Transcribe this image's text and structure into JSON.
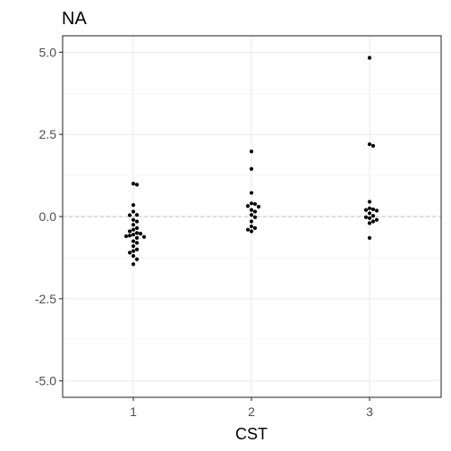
{
  "chart_data": {
    "type": "scatter",
    "title": "NA",
    "xlabel": "CST",
    "ylabel": "",
    "categories": [
      "1",
      "2",
      "3"
    ],
    "ylim": [
      -5.5,
      5.5
    ],
    "yticks": [
      5.0,
      2.5,
      0.0,
      -2.5,
      -5.0
    ],
    "ytick_labels": [
      "5.0",
      "2.5",
      "0.0",
      "-2.5",
      "-5.0"
    ],
    "reference_line": 0,
    "grid": true,
    "points": [
      {
        "category": "1",
        "values": [
          1.0,
          0.97,
          0.35,
          0.15,
          0.05,
          0.04,
          -0.1,
          -0.15,
          -0.25,
          -0.35,
          -0.4,
          -0.45,
          -0.5,
          -0.52,
          -0.55,
          -0.58,
          -0.6,
          -0.62,
          -0.65,
          -0.75,
          -0.8,
          -0.9,
          -1.0,
          -1.05,
          -1.1,
          -1.2,
          -1.3,
          -1.45
        ]
      },
      {
        "category": "2",
        "values": [
          1.98,
          1.45,
          0.72,
          0.4,
          0.38,
          0.32,
          0.3,
          0.2,
          0.15,
          0.05,
          -0.02,
          -0.15,
          -0.3,
          -0.35,
          -0.4,
          -0.45
        ]
      },
      {
        "category": "3",
        "values": [
          4.83,
          2.2,
          2.15,
          0.45,
          0.25,
          0.22,
          0.2,
          0.18,
          0.1,
          0.02,
          -0.02,
          -0.05,
          -0.1,
          -0.15,
          -0.2,
          -0.65
        ]
      }
    ]
  }
}
